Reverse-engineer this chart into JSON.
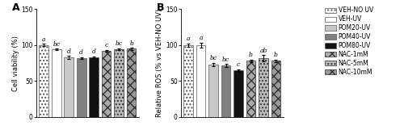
{
  "panel_A": {
    "values": [
      100,
      94,
      83,
      82,
      83,
      92,
      94,
      95
    ],
    "errors": [
      1.5,
      1.2,
      1.8,
      1.5,
      1.5,
      1.5,
      1.5,
      1.5
    ],
    "letters": [
      "a",
      "bc",
      "d",
      "d",
      "d",
      "c",
      "bc",
      "b"
    ],
    "ylabel": "Cell viability (%)",
    "ylim": [
      0,
      150
    ],
    "yticks": [
      0,
      50,
      100,
      150
    ],
    "title": "A"
  },
  "panel_B": {
    "values": [
      100,
      100,
      73,
      72,
      65,
      78,
      82,
      78
    ],
    "errors": [
      2.5,
      3.5,
      2.5,
      2.0,
      1.5,
      2.0,
      4.5,
      2.0
    ],
    "letters": [
      "a",
      "a",
      "bc",
      "bc",
      "c",
      "b",
      "ab",
      "b"
    ],
    "ylabel": "Relative ROS (% vs VEH-NO UV)",
    "ylim": [
      0,
      150
    ],
    "yticks": [
      0,
      50,
      100,
      150
    ],
    "title": "B"
  },
  "legend_labels": [
    "VEH-NO UV",
    "VEH-UV",
    "POM20-UV",
    "POM40-UV",
    "POM80-UV",
    "NAC-1mM",
    "NAC-5mM",
    "NAC-10mM"
  ],
  "bar_styles": [
    {
      "facecolor": "white",
      "hatch": "....",
      "edgecolor": "#555555"
    },
    {
      "facecolor": "white",
      "hatch": "",
      "edgecolor": "#555555"
    },
    {
      "facecolor": "#c8c8c8",
      "hatch": "",
      "edgecolor": "#555555"
    },
    {
      "facecolor": "#808080",
      "hatch": "",
      "edgecolor": "#555555"
    },
    {
      "facecolor": "#111111",
      "hatch": "",
      "edgecolor": "#555555"
    },
    {
      "facecolor": "#aaaaaa",
      "hatch": "xxx",
      "edgecolor": "#333333"
    },
    {
      "facecolor": "#bbbbbb",
      "hatch": "....",
      "edgecolor": "#333333"
    },
    {
      "facecolor": "#999999",
      "hatch": "xxx",
      "edgecolor": "#333333"
    }
  ],
  "bar_width": 0.75,
  "letter_fontsize": 5.5,
  "label_fontsize": 6,
  "tick_fontsize": 5.5,
  "legend_fontsize": 5.5,
  "title_fontsize": 9,
  "figsize": [
    5.0,
    1.61
  ],
  "dpi": 100
}
